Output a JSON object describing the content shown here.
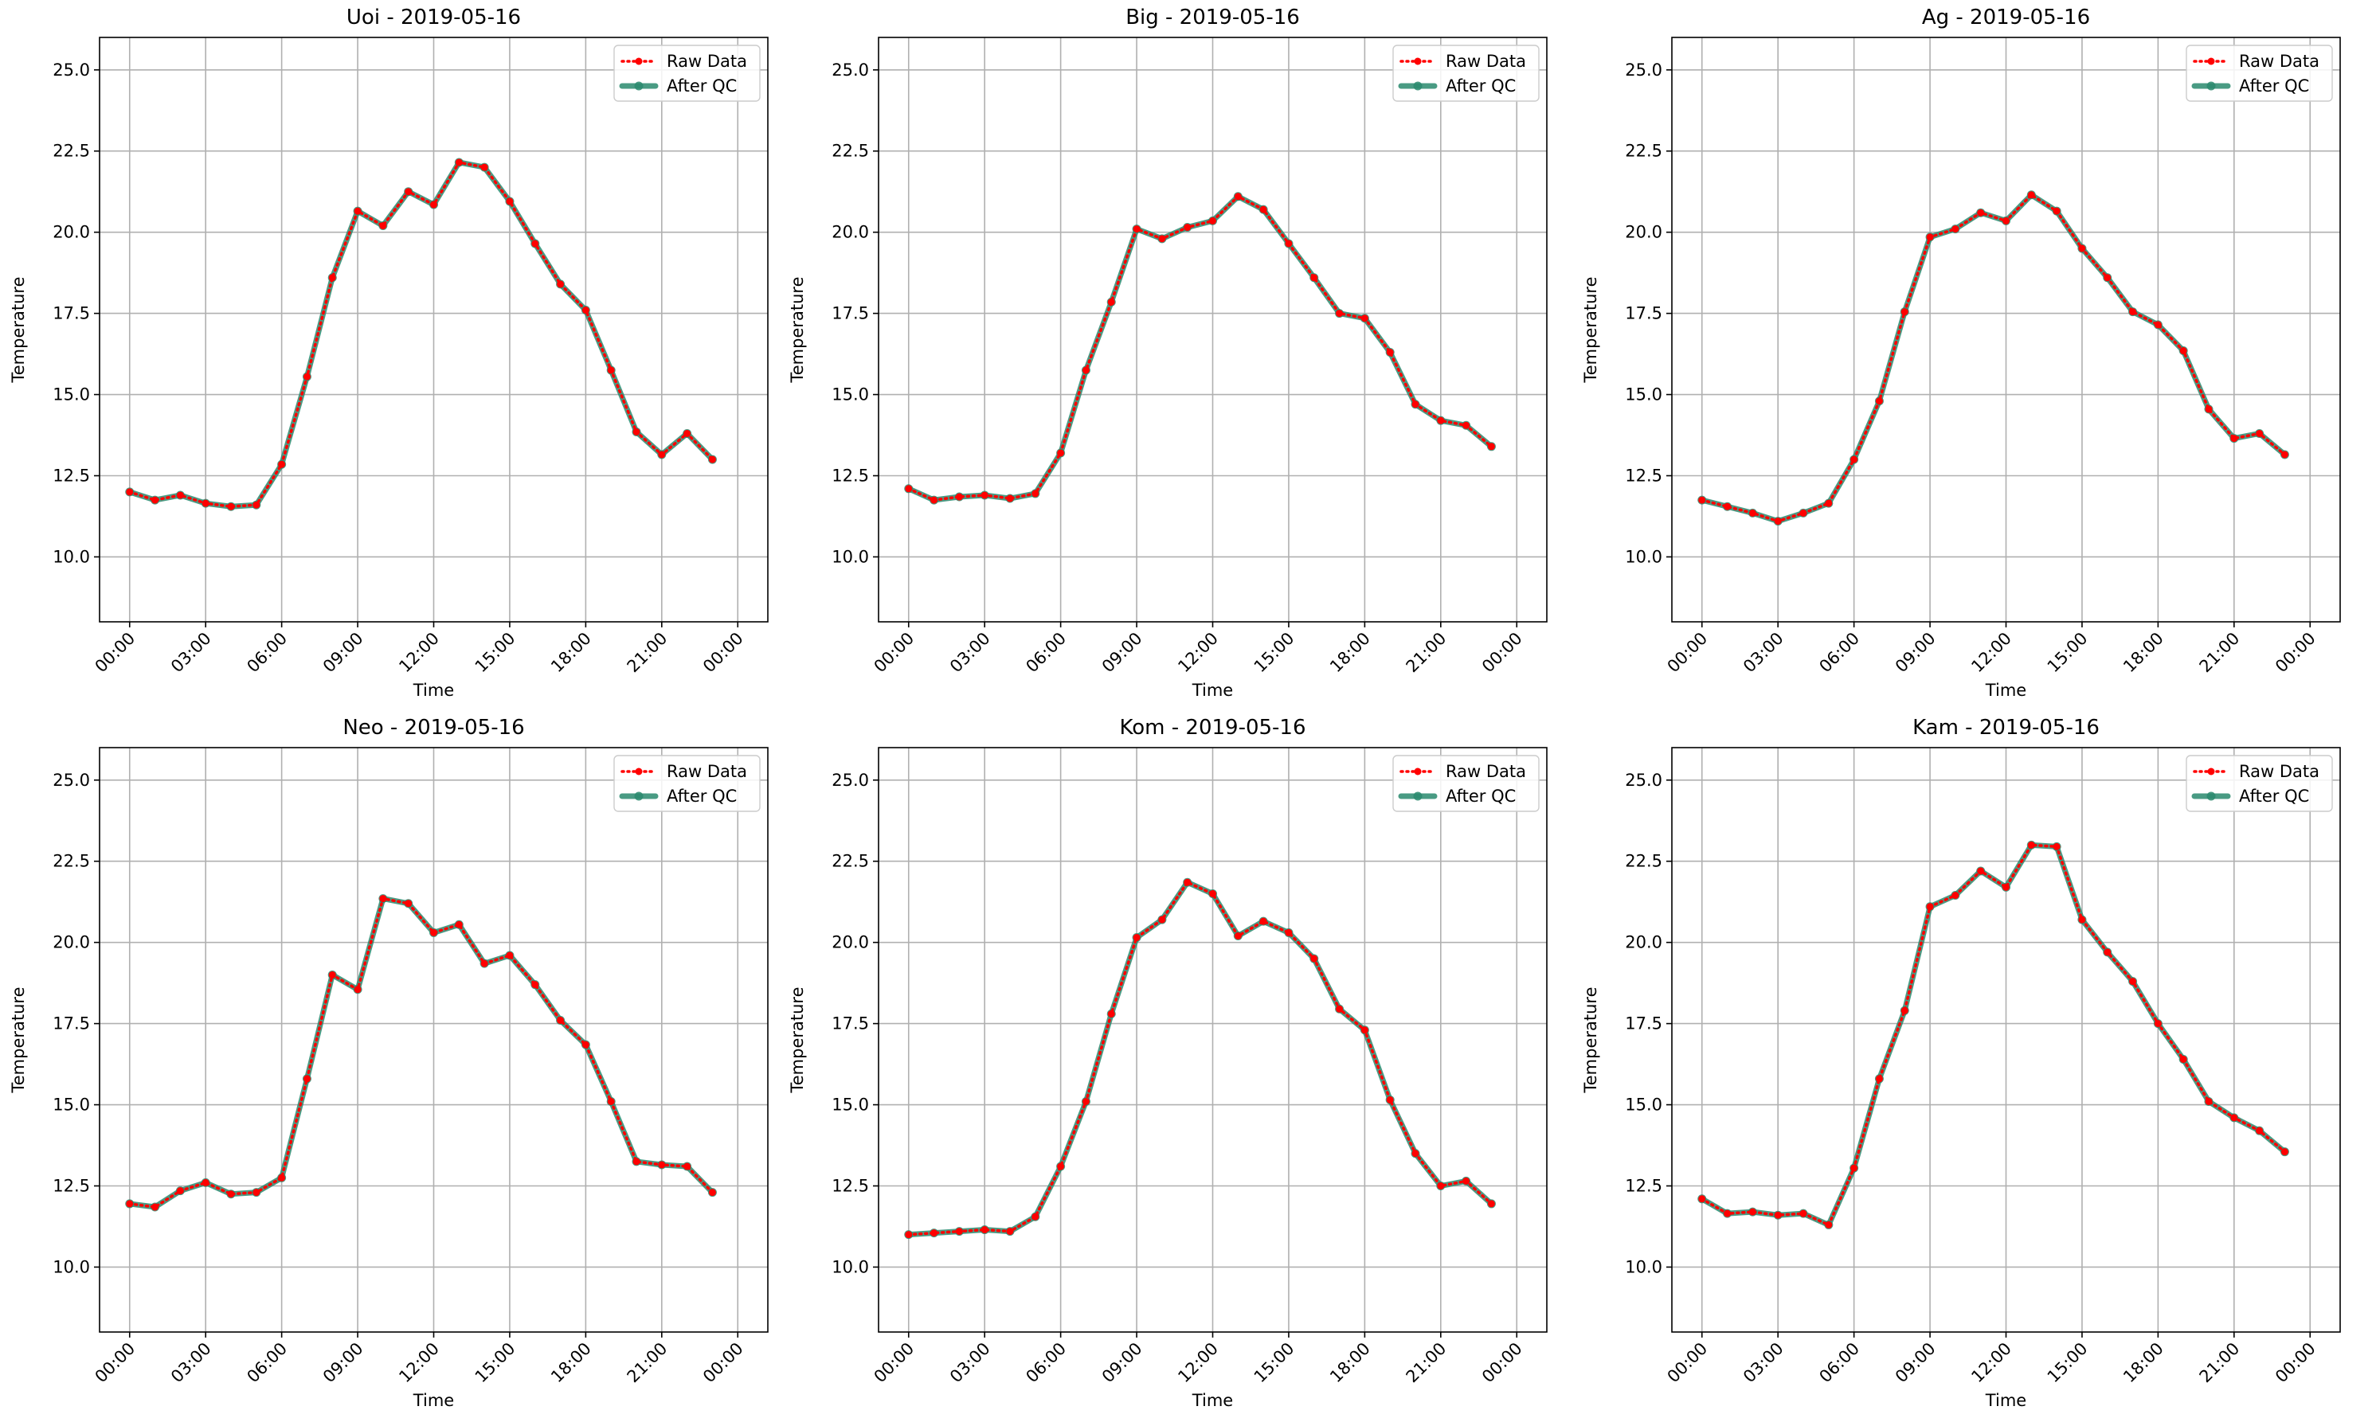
{
  "chart_data": [
    {
      "type": "line",
      "title": "Uoi - 2019-05-16",
      "xlabel": "Time",
      "ylabel": "Temperature",
      "x": [
        "00:00",
        "01:00",
        "02:00",
        "03:00",
        "04:00",
        "05:00",
        "06:00",
        "07:00",
        "08:00",
        "09:00",
        "10:00",
        "11:00",
        "12:00",
        "13:00",
        "14:00",
        "15:00",
        "16:00",
        "17:00",
        "18:00",
        "19:00",
        "20:00",
        "21:00",
        "22:00",
        "23:00"
      ],
      "xticks": [
        "00:00",
        "03:00",
        "06:00",
        "09:00",
        "12:00",
        "15:00",
        "18:00",
        "21:00",
        "00:00"
      ],
      "xlim": [
        "2019-05-16 00:00",
        "2019-05-17 00:00"
      ],
      "ylim": [
        8.0,
        26.0
      ],
      "yticks": [
        "10.0",
        "12.5",
        "15.0",
        "17.5",
        "20.0",
        "22.5",
        "25.0"
      ],
      "grid": true,
      "legend": "top-right",
      "series": [
        {
          "name": "Raw Data",
          "color": "#ff0000",
          "style": "dotted",
          "marker": "o",
          "values": [
            12.0,
            11.75,
            11.9,
            11.65,
            11.55,
            11.6,
            12.85,
            15.55,
            18.6,
            20.65,
            20.2,
            21.25,
            20.85,
            22.15,
            22.0,
            20.95,
            19.65,
            18.4,
            17.6,
            15.75,
            13.85,
            13.15,
            13.8,
            13.0
          ]
        },
        {
          "name": "After QC",
          "color": "#2a8a6e",
          "style": "solid",
          "marker": "o",
          "values": [
            12.0,
            11.75,
            11.9,
            11.65,
            11.55,
            11.6,
            12.85,
            15.55,
            18.6,
            20.65,
            20.2,
            21.25,
            20.85,
            22.15,
            22.0,
            20.95,
            19.65,
            18.4,
            17.6,
            15.75,
            13.85,
            13.15,
            13.8,
            13.0
          ]
        }
      ]
    },
    {
      "type": "line",
      "title": "Big - 2019-05-16",
      "xlabel": "Time",
      "ylabel": "Temperature",
      "x": [
        "00:00",
        "01:00",
        "02:00",
        "03:00",
        "04:00",
        "05:00",
        "06:00",
        "07:00",
        "08:00",
        "09:00",
        "10:00",
        "11:00",
        "12:00",
        "13:00",
        "14:00",
        "15:00",
        "16:00",
        "17:00",
        "18:00",
        "19:00",
        "20:00",
        "21:00",
        "22:00",
        "23:00"
      ],
      "xticks": [
        "00:00",
        "03:00",
        "06:00",
        "09:00",
        "12:00",
        "15:00",
        "18:00",
        "21:00",
        "00:00"
      ],
      "xlim": [
        "2019-05-16 00:00",
        "2019-05-17 00:00"
      ],
      "ylim": [
        8.0,
        26.0
      ],
      "yticks": [
        "10.0",
        "12.5",
        "15.0",
        "17.5",
        "20.0",
        "22.5",
        "25.0"
      ],
      "grid": true,
      "legend": "top-right",
      "series": [
        {
          "name": "Raw Data",
          "color": "#ff0000",
          "style": "dotted",
          "marker": "o",
          "values": [
            12.1,
            11.75,
            11.85,
            11.9,
            11.8,
            11.95,
            13.2,
            15.75,
            17.85,
            20.1,
            19.8,
            20.15,
            20.35,
            21.1,
            20.7,
            19.65,
            18.6,
            17.5,
            17.35,
            16.3,
            14.7,
            14.2,
            14.05,
            13.4
          ]
        },
        {
          "name": "After QC",
          "color": "#2a8a6e",
          "style": "solid",
          "marker": "o",
          "values": [
            12.1,
            11.75,
            11.85,
            11.9,
            11.8,
            11.95,
            13.2,
            15.75,
            17.85,
            20.1,
            19.8,
            20.15,
            20.35,
            21.1,
            20.7,
            19.65,
            18.6,
            17.5,
            17.35,
            16.3,
            14.7,
            14.2,
            14.05,
            13.4
          ]
        }
      ]
    },
    {
      "type": "line",
      "title": "Ag - 2019-05-16",
      "xlabel": "Time",
      "ylabel": "Temperature",
      "x": [
        "00:00",
        "01:00",
        "02:00",
        "03:00",
        "04:00",
        "05:00",
        "06:00",
        "07:00",
        "08:00",
        "09:00",
        "10:00",
        "11:00",
        "12:00",
        "13:00",
        "14:00",
        "15:00",
        "16:00",
        "17:00",
        "18:00",
        "19:00",
        "20:00",
        "21:00",
        "22:00",
        "23:00"
      ],
      "xticks": [
        "00:00",
        "03:00",
        "06:00",
        "09:00",
        "12:00",
        "15:00",
        "18:00",
        "21:00",
        "00:00"
      ],
      "xlim": [
        "2019-05-16 00:00",
        "2019-05-17 00:00"
      ],
      "ylim": [
        8.0,
        26.0
      ],
      "yticks": [
        "10.0",
        "12.5",
        "15.0",
        "17.5",
        "20.0",
        "22.5",
        "25.0"
      ],
      "grid": true,
      "legend": "top-right",
      "series": [
        {
          "name": "Raw Data",
          "color": "#ff0000",
          "style": "dotted",
          "marker": "o",
          "values": [
            11.75,
            11.55,
            11.35,
            11.1,
            11.35,
            11.65,
            13.0,
            14.8,
            17.55,
            19.85,
            20.1,
            20.6,
            20.35,
            21.15,
            20.65,
            19.5,
            18.6,
            17.55,
            17.15,
            16.35,
            14.55,
            13.65,
            13.8,
            13.15
          ]
        },
        {
          "name": "After QC",
          "color": "#2a8a6e",
          "style": "solid",
          "marker": "o",
          "values": [
            11.75,
            11.55,
            11.35,
            11.1,
            11.35,
            11.65,
            13.0,
            14.8,
            17.55,
            19.85,
            20.1,
            20.6,
            20.35,
            21.15,
            20.65,
            19.5,
            18.6,
            17.55,
            17.15,
            16.35,
            14.55,
            13.65,
            13.8,
            13.15
          ]
        }
      ]
    },
    {
      "type": "line",
      "title": "Neo - 2019-05-16",
      "xlabel": "Time",
      "ylabel": "Temperature",
      "x": [
        "00:00",
        "01:00",
        "02:00",
        "03:00",
        "04:00",
        "05:00",
        "06:00",
        "07:00",
        "08:00",
        "09:00",
        "10:00",
        "11:00",
        "12:00",
        "13:00",
        "14:00",
        "15:00",
        "16:00",
        "17:00",
        "18:00",
        "19:00",
        "20:00",
        "21:00",
        "22:00",
        "23:00"
      ],
      "xticks": [
        "00:00",
        "03:00",
        "06:00",
        "09:00",
        "12:00",
        "15:00",
        "18:00",
        "21:00",
        "00:00"
      ],
      "xlim": [
        "2019-05-16 00:00",
        "2019-05-17 00:00"
      ],
      "ylim": [
        8.0,
        26.0
      ],
      "yticks": [
        "10.0",
        "12.5",
        "15.0",
        "17.5",
        "20.0",
        "22.5",
        "25.0"
      ],
      "grid": true,
      "legend": "top-right",
      "series": [
        {
          "name": "Raw Data",
          "color": "#ff0000",
          "style": "dotted",
          "marker": "o",
          "values": [
            11.95,
            11.85,
            12.35,
            12.6,
            12.25,
            12.3,
            12.75,
            15.8,
            19.0,
            18.55,
            21.35,
            21.2,
            20.3,
            20.55,
            19.35,
            19.6,
            18.7,
            17.6,
            16.85,
            15.1,
            13.25,
            13.15,
            13.1,
            12.3
          ]
        },
        {
          "name": "After QC",
          "color": "#2a8a6e",
          "style": "solid",
          "marker": "o",
          "values": [
            11.95,
            11.85,
            12.35,
            12.6,
            12.25,
            12.3,
            12.75,
            15.8,
            19.0,
            18.55,
            21.35,
            21.2,
            20.3,
            20.55,
            19.35,
            19.6,
            18.7,
            17.6,
            16.85,
            15.1,
            13.25,
            13.15,
            13.1,
            12.3
          ]
        }
      ]
    },
    {
      "type": "line",
      "title": "Kom - 2019-05-16",
      "xlabel": "Time",
      "ylabel": "Temperature",
      "x": [
        "00:00",
        "01:00",
        "02:00",
        "03:00",
        "04:00",
        "05:00",
        "06:00",
        "07:00",
        "08:00",
        "09:00",
        "10:00",
        "11:00",
        "12:00",
        "13:00",
        "14:00",
        "15:00",
        "16:00",
        "17:00",
        "18:00",
        "19:00",
        "20:00",
        "21:00",
        "22:00",
        "23:00"
      ],
      "xticks": [
        "00:00",
        "03:00",
        "06:00",
        "09:00",
        "12:00",
        "15:00",
        "18:00",
        "21:00",
        "00:00"
      ],
      "xlim": [
        "2019-05-16 00:00",
        "2019-05-17 00:00"
      ],
      "ylim": [
        8.0,
        26.0
      ],
      "yticks": [
        "10.0",
        "12.5",
        "15.0",
        "17.5",
        "20.0",
        "22.5",
        "25.0"
      ],
      "grid": true,
      "legend": "top-right",
      "series": [
        {
          "name": "Raw Data",
          "color": "#ff0000",
          "style": "dotted",
          "marker": "o",
          "values": [
            11.0,
            11.05,
            11.1,
            11.15,
            11.1,
            11.55,
            13.1,
            15.1,
            17.8,
            20.15,
            20.7,
            21.85,
            21.5,
            20.2,
            20.65,
            20.3,
            19.5,
            17.95,
            17.3,
            15.15,
            13.5,
            12.5,
            12.65,
            11.95
          ]
        },
        {
          "name": "After QC",
          "color": "#2a8a6e",
          "style": "solid",
          "marker": "o",
          "values": [
            11.0,
            11.05,
            11.1,
            11.15,
            11.1,
            11.55,
            13.1,
            15.1,
            17.8,
            20.15,
            20.7,
            21.85,
            21.5,
            20.2,
            20.65,
            20.3,
            19.5,
            17.95,
            17.3,
            15.15,
            13.5,
            12.5,
            12.65,
            11.95
          ]
        }
      ]
    },
    {
      "type": "line",
      "title": "Kam - 2019-05-16",
      "xlabel": "Time",
      "ylabel": "Temperature",
      "x": [
        "00:00",
        "01:00",
        "02:00",
        "03:00",
        "04:00",
        "05:00",
        "06:00",
        "07:00",
        "08:00",
        "09:00",
        "10:00",
        "11:00",
        "12:00",
        "13:00",
        "14:00",
        "15:00",
        "16:00",
        "17:00",
        "18:00",
        "19:00",
        "20:00",
        "21:00",
        "22:00",
        "23:00"
      ],
      "xticks": [
        "00:00",
        "03:00",
        "06:00",
        "09:00",
        "12:00",
        "15:00",
        "18:00",
        "21:00",
        "00:00"
      ],
      "xlim": [
        "2019-05-16 00:00",
        "2019-05-17 00:00"
      ],
      "ylim": [
        8.0,
        26.0
      ],
      "yticks": [
        "10.0",
        "12.5",
        "15.0",
        "17.5",
        "20.0",
        "22.5",
        "25.0"
      ],
      "grid": true,
      "legend": "top-right",
      "series": [
        {
          "name": "Raw Data",
          "color": "#ff0000",
          "style": "dotted",
          "marker": "o",
          "values": [
            12.1,
            11.65,
            11.7,
            11.6,
            11.65,
            11.3,
            13.05,
            15.8,
            17.9,
            21.1,
            21.45,
            22.2,
            21.7,
            23.0,
            22.95,
            20.7,
            19.7,
            18.8,
            17.5,
            16.4,
            15.1,
            14.6,
            14.2,
            13.55
          ]
        },
        {
          "name": "After QC",
          "color": "#2a8a6e",
          "style": "solid",
          "marker": "o",
          "values": [
            12.1,
            11.65,
            11.7,
            11.6,
            11.65,
            11.3,
            13.05,
            15.8,
            17.9,
            21.1,
            21.45,
            22.2,
            21.7,
            23.0,
            22.95,
            20.7,
            19.7,
            18.8,
            17.5,
            16.4,
            15.1,
            14.6,
            14.2,
            13.55
          ]
        }
      ]
    }
  ]
}
